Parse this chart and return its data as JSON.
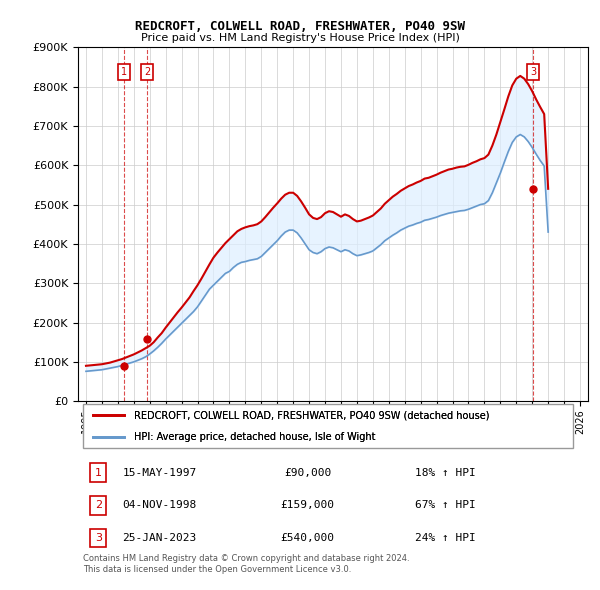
{
  "title": "REDCROFT, COLWELL ROAD, FRESHWATER, PO40 9SW",
  "subtitle": "Price paid vs. HM Land Registry's House Price Index (HPI)",
  "legend_label_red": "REDCROFT, COLWELL ROAD, FRESHWATER, PO40 9SW (detached house)",
  "legend_label_blue": "HPI: Average price, detached house, Isle of Wight",
  "footer": "Contains HM Land Registry data © Crown copyright and database right 2024.\nThis data is licensed under the Open Government Licence v3.0.",
  "transactions": [
    {
      "num": 1,
      "date": "15-MAY-1997",
      "price": "£90,000",
      "hpi": "18% ↑ HPI",
      "year": 1997.37,
      "value": 90000
    },
    {
      "num": 2,
      "date": "04-NOV-1998",
      "price": "£159,000",
      "hpi": "67% ↑ HPI",
      "year": 1998.84,
      "value": 159000
    },
    {
      "num": 3,
      "date": "25-JAN-2023",
      "price": "£540,000",
      "hpi": "24% ↑ HPI",
      "year": 2023.07,
      "value": 540000
    }
  ],
  "ylim": [
    0,
    900000
  ],
  "yticks": [
    0,
    100000,
    200000,
    300000,
    400000,
    500000,
    600000,
    700000,
    800000,
    900000
  ],
  "ytick_labels": [
    "£0",
    "£100K",
    "£200K",
    "£300K",
    "£400K",
    "£500K",
    "£600K",
    "£700K",
    "£800K",
    "£900K"
  ],
  "xlim": [
    1994.5,
    2026.5
  ],
  "xticks": [
    1995,
    1996,
    1997,
    1998,
    1999,
    2000,
    2001,
    2002,
    2003,
    2004,
    2005,
    2006,
    2007,
    2008,
    2009,
    2010,
    2011,
    2012,
    2013,
    2014,
    2015,
    2016,
    2017,
    2018,
    2019,
    2020,
    2021,
    2022,
    2023,
    2024,
    2025,
    2026
  ],
  "red_color": "#cc0000",
  "blue_color": "#6699cc",
  "shading_color": "#ddeeff",
  "background_color": "#ffffff",
  "grid_color": "#cccccc",
  "hpi_x": [
    1995.0,
    1995.25,
    1995.5,
    1995.75,
    1996.0,
    1996.25,
    1996.5,
    1996.75,
    1997.0,
    1997.25,
    1997.5,
    1997.75,
    1998.0,
    1998.25,
    1998.5,
    1998.75,
    1999.0,
    1999.25,
    1999.5,
    1999.75,
    2000.0,
    2000.25,
    2000.5,
    2000.75,
    2001.0,
    2001.25,
    2001.5,
    2001.75,
    2002.0,
    2002.25,
    2002.5,
    2002.75,
    2003.0,
    2003.25,
    2003.5,
    2003.75,
    2004.0,
    2004.25,
    2004.5,
    2004.75,
    2005.0,
    2005.25,
    2005.5,
    2005.75,
    2006.0,
    2006.25,
    2006.5,
    2006.75,
    2007.0,
    2007.25,
    2007.5,
    2007.75,
    2008.0,
    2008.25,
    2008.5,
    2008.75,
    2009.0,
    2009.25,
    2009.5,
    2009.75,
    2010.0,
    2010.25,
    2010.5,
    2010.75,
    2011.0,
    2011.25,
    2011.5,
    2011.75,
    2012.0,
    2012.25,
    2012.5,
    2012.75,
    2013.0,
    2013.25,
    2013.5,
    2013.75,
    2014.0,
    2014.25,
    2014.5,
    2014.75,
    2015.0,
    2015.25,
    2015.5,
    2015.75,
    2016.0,
    2016.25,
    2016.5,
    2016.75,
    2017.0,
    2017.25,
    2017.5,
    2017.75,
    2018.0,
    2018.25,
    2018.5,
    2018.75,
    2019.0,
    2019.25,
    2019.5,
    2019.75,
    2020.0,
    2020.25,
    2020.5,
    2020.75,
    2021.0,
    2021.25,
    2021.5,
    2021.75,
    2022.0,
    2022.25,
    2022.5,
    2022.75,
    2023.0,
    2023.25,
    2023.5,
    2023.75,
    2024.0
  ],
  "hpi_y": [
    76000,
    77000,
    78000,
    79000,
    80000,
    82000,
    84000,
    86000,
    88000,
    91000,
    94000,
    97000,
    100000,
    104000,
    108000,
    113000,
    120000,
    128000,
    137000,
    147000,
    158000,
    168000,
    178000,
    188000,
    198000,
    208000,
    218000,
    228000,
    240000,
    255000,
    270000,
    285000,
    295000,
    305000,
    315000,
    325000,
    330000,
    340000,
    348000,
    353000,
    355000,
    358000,
    360000,
    362000,
    368000,
    378000,
    388000,
    398000,
    408000,
    420000,
    430000,
    435000,
    435000,
    428000,
    415000,
    400000,
    385000,
    378000,
    375000,
    380000,
    388000,
    392000,
    390000,
    385000,
    380000,
    385000,
    382000,
    375000,
    370000,
    372000,
    375000,
    378000,
    382000,
    390000,
    398000,
    408000,
    415000,
    422000,
    428000,
    435000,
    440000,
    445000,
    448000,
    452000,
    455000,
    460000,
    462000,
    465000,
    468000,
    472000,
    475000,
    478000,
    480000,
    482000,
    484000,
    485000,
    488000,
    492000,
    496000,
    500000,
    502000,
    510000,
    530000,
    555000,
    580000,
    608000,
    635000,
    658000,
    672000,
    678000,
    672000,
    660000,
    645000,
    628000,
    612000,
    598000,
    430000
  ],
  "red_x": [
    1995.0,
    1995.25,
    1995.5,
    1995.75,
    1996.0,
    1996.25,
    1996.5,
    1996.75,
    1997.0,
    1997.25,
    1997.5,
    1997.75,
    1998.0,
    1998.25,
    1998.5,
    1998.75,
    1999.0,
    1999.25,
    1999.5,
    1999.75,
    2000.0,
    2000.25,
    2000.5,
    2000.75,
    2001.0,
    2001.25,
    2001.5,
    2001.75,
    2002.0,
    2002.25,
    2002.5,
    2002.75,
    2003.0,
    2003.25,
    2003.5,
    2003.75,
    2004.0,
    2004.25,
    2004.5,
    2004.75,
    2005.0,
    2005.25,
    2005.5,
    2005.75,
    2006.0,
    2006.25,
    2006.5,
    2006.75,
    2007.0,
    2007.25,
    2007.5,
    2007.75,
    2008.0,
    2008.25,
    2008.5,
    2008.75,
    2009.0,
    2009.25,
    2009.5,
    2009.75,
    2010.0,
    2010.25,
    2010.5,
    2010.75,
    2011.0,
    2011.25,
    2011.5,
    2011.75,
    2012.0,
    2012.25,
    2012.5,
    2012.75,
    2013.0,
    2013.25,
    2013.5,
    2013.75,
    2014.0,
    2014.25,
    2014.5,
    2014.75,
    2015.0,
    2015.25,
    2015.5,
    2015.75,
    2016.0,
    2016.25,
    2016.5,
    2016.75,
    2017.0,
    2017.25,
    2017.5,
    2017.75,
    2018.0,
    2018.25,
    2018.5,
    2018.75,
    2019.0,
    2019.25,
    2019.5,
    2019.75,
    2020.0,
    2020.25,
    2020.5,
    2020.75,
    2021.0,
    2021.25,
    2021.5,
    2021.75,
    2022.0,
    2022.25,
    2022.5,
    2022.75,
    2023.0,
    2023.25,
    2023.5,
    2023.75,
    2024.0
  ],
  "red_y": [
    90000,
    91000,
    92000,
    93000,
    94000,
    96000,
    98000,
    101000,
    104000,
    107000,
    111000,
    115000,
    119000,
    124000,
    129000,
    135000,
    141000,
    150000,
    162000,
    173000,
    187000,
    200000,
    213000,
    226000,
    238000,
    251000,
    264000,
    280000,
    295000,
    312000,
    330000,
    348000,
    365000,
    378000,
    390000,
    402000,
    412000,
    422000,
    432000,
    438000,
    442000,
    445000,
    447000,
    450000,
    457000,
    468000,
    480000,
    492000,
    503000,
    515000,
    525000,
    530000,
    530000,
    522000,
    508000,
    492000,
    475000,
    466000,
    463000,
    468000,
    478000,
    483000,
    481000,
    475000,
    469000,
    475000,
    471000,
    463000,
    457000,
    459000,
    463000,
    467000,
    472000,
    481000,
    490000,
    502000,
    511000,
    520000,
    527000,
    535000,
    541000,
    547000,
    551000,
    556000,
    560000,
    566000,
    568000,
    572000,
    576000,
    581000,
    585000,
    589000,
    591000,
    594000,
    596000,
    597000,
    601000,
    606000,
    610000,
    615000,
    618000,
    627000,
    650000,
    678000,
    710000,
    742000,
    775000,
    803000,
    820000,
    827000,
    820000,
    806000,
    788000,
    767000,
    748000,
    730000,
    540000
  ]
}
